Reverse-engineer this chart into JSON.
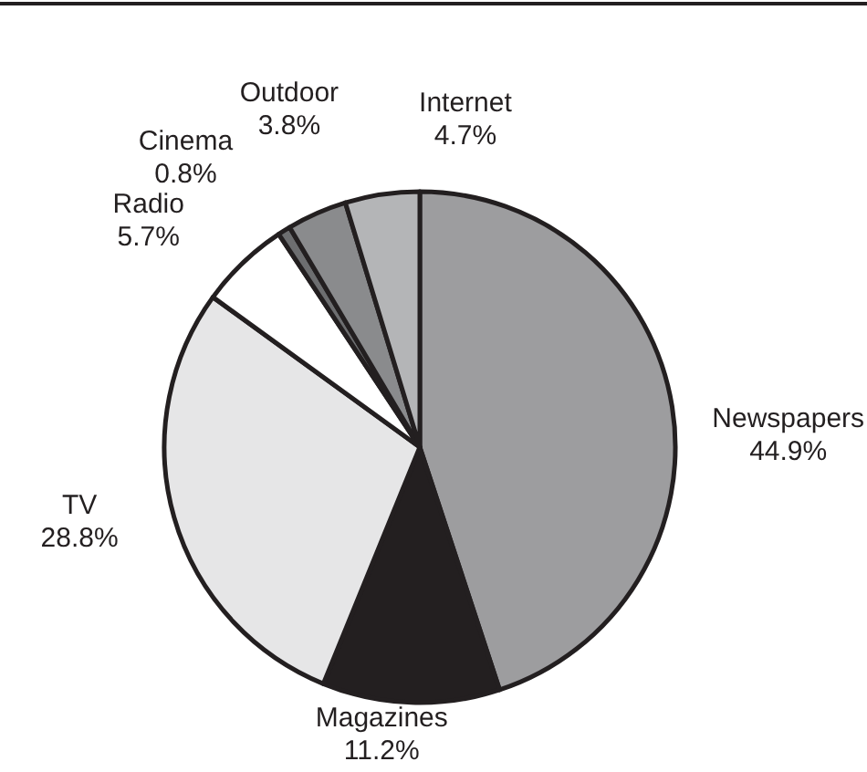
{
  "chart_data": {
    "type": "pie",
    "categories": [
      "Newspapers",
      "Magazines",
      "TV",
      "Radio",
      "Cinema",
      "Outdoor",
      "Internet"
    ],
    "values": [
      44.9,
      11.2,
      28.8,
      5.7,
      0.8,
      3.8,
      4.7
    ],
    "colors": [
      "#9d9d9f",
      "#231f20",
      "#e6e6e7",
      "#ffffff",
      "#6d6e70",
      "#8a8b8d",
      "#b4b5b7"
    ],
    "value_labels": [
      "44.9%",
      "11.2%",
      "28.8%",
      "5.7%",
      "0.8%",
      "3.8%",
      "4.7%"
    ]
  }
}
